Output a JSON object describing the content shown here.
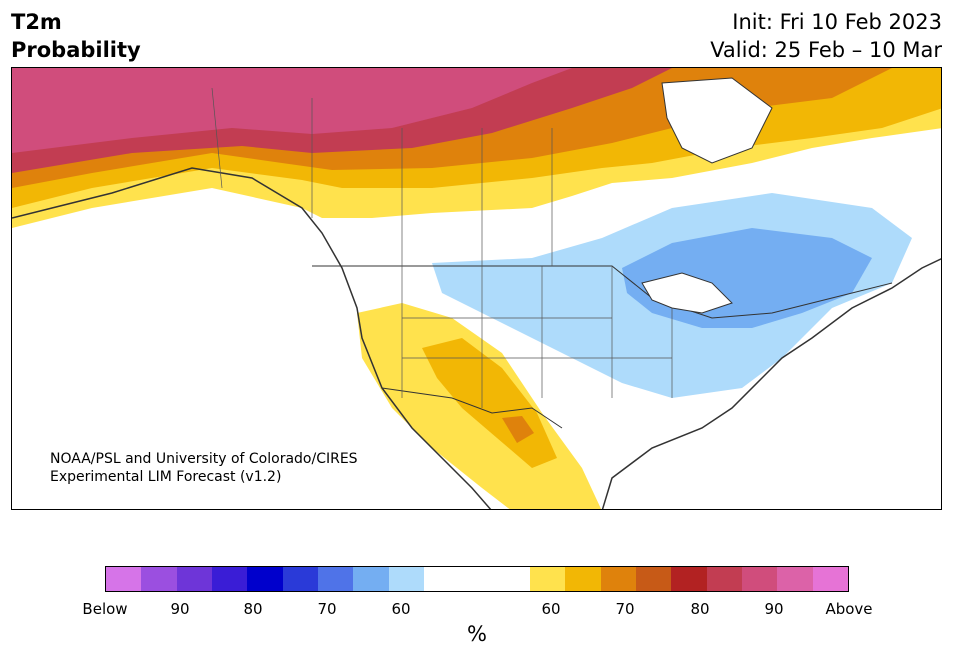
{
  "header": {
    "variable": "T2m",
    "product": "Probability",
    "init": "Init: Fri 10 Feb 2023",
    "valid": "Valid: 25 Feb – 10 Mar"
  },
  "credit": {
    "line1": "NOAA/PSL and University of Colorado/CIRES",
    "line2": "Experimental LIM Forecast (v1.2)"
  },
  "colorbar": {
    "colors": [
      "#d674e8",
      "#9b4fe0",
      "#6e35d8",
      "#3a1dd6",
      "#0000cc",
      "#2a3ad8",
      "#4f73e8",
      "#74aef2",
      "#aedbfb",
      "#ffffff",
      "#ffe24d",
      "#f2b705",
      "#df820c",
      "#c75a17",
      "#b22222",
      "#c23d52",
      "#d04d7c",
      "#dc62a8",
      "#e673d6"
    ],
    "labels": [
      "Below",
      "90",
      "80",
      "70",
      "60",
      "60",
      "70",
      "80",
      "90",
      "Above"
    ],
    "units": "%"
  },
  "legend_colors": {
    "below_60": "#aedbfb",
    "below_70": "#74aef2",
    "above_60": "#ffe24d",
    "above_70": "#f2b705",
    "above_80": "#df820c",
    "above_90": "#c23d52",
    "above_max": "#d04d7c"
  }
}
